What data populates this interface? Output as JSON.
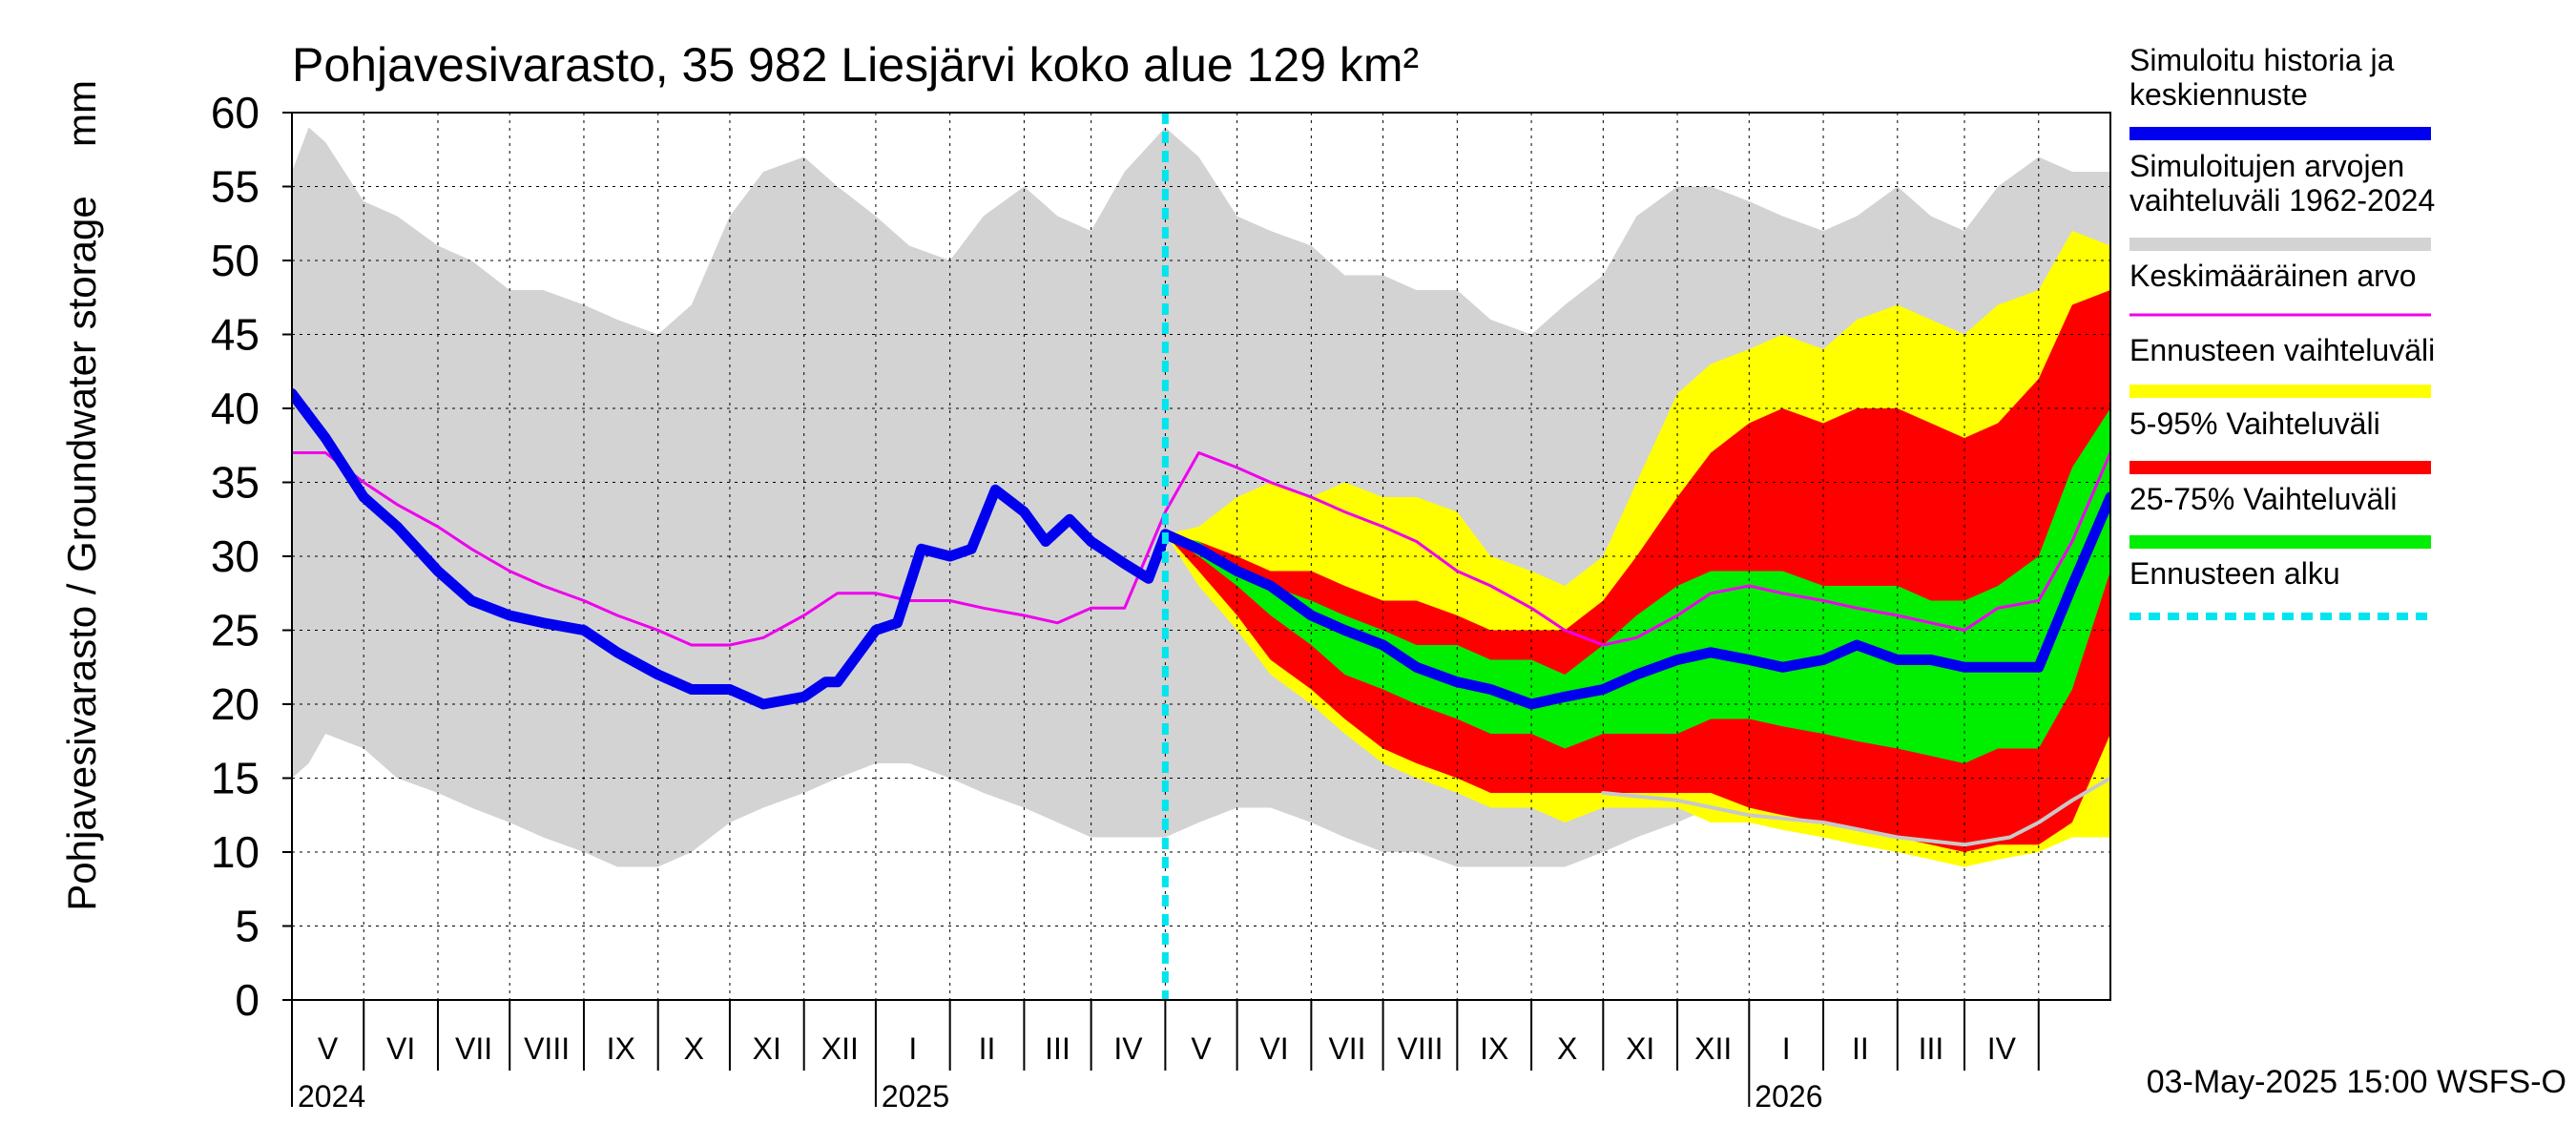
{
  "chart_data": {
    "type": "area",
    "title": "Pohjavesivarasto, 35 982 Liesjärvi koko alue 129 km²",
    "ylabel": "Pohjavesivarasto / Groundwater storage",
    "yunit": "mm",
    "ylim": [
      0,
      60
    ],
    "yticks": [
      0,
      5,
      10,
      15,
      20,
      25,
      30,
      35,
      40,
      45,
      50,
      55,
      60
    ],
    "xlim": [
      "2024-04-01",
      "2026-05-01"
    ],
    "x_axis": {
      "months": [
        {
          "label": "V",
          "start": "2024-04-01",
          "end": "2024-05-01"
        },
        {
          "label": "VI",
          "start": "2024-05-01",
          "end": "2024-06-01"
        },
        {
          "label": "VII",
          "start": "2024-06-01",
          "end": "2024-07-01"
        },
        {
          "label": "VIII",
          "start": "2024-07-01",
          "end": "2024-08-01"
        },
        {
          "label": "IX",
          "start": "2024-08-01",
          "end": "2024-09-01"
        },
        {
          "label": "X",
          "start": "2024-09-01",
          "end": "2024-10-01"
        },
        {
          "label": "XI",
          "start": "2024-10-01",
          "end": "2024-11-01"
        },
        {
          "label": "XII",
          "start": "2024-11-01",
          "end": "2024-12-01"
        },
        {
          "label": "I",
          "start": "2024-12-01",
          "end": "2025-01-01"
        },
        {
          "label": "II",
          "start": "2025-01-01",
          "end": "2025-02-01"
        },
        {
          "label": "III",
          "start": "2025-02-01",
          "end": "2025-03-01"
        },
        {
          "label": "IV",
          "start": "2025-03-01",
          "end": "2025-04-01"
        },
        {
          "label": "V",
          "start": "2025-04-01",
          "end": "2025-05-01"
        },
        {
          "label": "VI",
          "start": "2025-05-01",
          "end": "2025-06-01"
        },
        {
          "label": "VII",
          "start": "2025-06-01",
          "end": "2025-07-01"
        },
        {
          "label": "VIII",
          "start": "2025-07-01",
          "end": "2025-08-01"
        },
        {
          "label": "IX",
          "start": "2025-08-01",
          "end": "2025-09-01"
        },
        {
          "label": "X",
          "start": "2025-09-01",
          "end": "2025-10-01"
        },
        {
          "label": "XI",
          "start": "2025-10-01",
          "end": "2025-11-01"
        },
        {
          "label": "XII",
          "start": "2025-11-01",
          "end": "2025-12-01"
        },
        {
          "label": "I",
          "start": "2025-12-01",
          "end": "2026-01-01"
        },
        {
          "label": "II",
          "start": "2026-01-01",
          "end": "2026-02-01"
        },
        {
          "label": "III",
          "start": "2026-02-01",
          "end": "2026-03-01"
        },
        {
          "label": "IV",
          "start": "2026-03-01",
          "end": "2026-04-01"
        },
        {
          "label": "",
          "start": "2026-04-01",
          "end": "2026-05-01"
        }
      ],
      "years": [
        {
          "label": "2024",
          "at": "2024-04-01"
        },
        {
          "label": "2025",
          "at": "2024-12-01"
        },
        {
          "label": "2026",
          "at": "2025-12-01"
        }
      ]
    },
    "forecast_start": "2025-04-01",
    "footer": "03-May-2025 15:00 WSFS-O",
    "legend": [
      {
        "label": "Simuloitu historia ja keskiennuste",
        "color": "#0000ee",
        "style": "thick-line"
      },
      {
        "label": "Simuloitujen arvojen vaihteluväli 1962-2024",
        "color": "#d3d3d3",
        "style": "thick-line"
      },
      {
        "label": "Keskimääräinen arvo",
        "color": "#ee00ee",
        "style": "thin-line"
      },
      {
        "label": "Ennusteen vaihteluväli",
        "color": "#ffff00",
        "style": "thick-line"
      },
      {
        "label": "5-95% Vaihteluväli",
        "color": "#ff0000",
        "style": "thick-line"
      },
      {
        "label": "25-75% Vaihteluväli",
        "color": "#00ee00",
        "style": "thick-line"
      },
      {
        "label": "Ennusteen alku",
        "color": "#00e5ee",
        "style": "dashed-line"
      }
    ],
    "colors": {
      "history_range": "#d3d3d3",
      "forecast_range": "#ffff00",
      "p5_95": "#ff0000",
      "p25_75": "#00ee00",
      "mean": "#ee00ee",
      "simulated": "#0000ee",
      "forecast_start": "#00e5ee",
      "grid": "#000000",
      "min_line": "#c8c8c8"
    },
    "series": [
      {
        "name": "Simuloitujen arvojen vaihteluväli 1962-2024",
        "kind": "band",
        "x": [
          "2024-04-01",
          "2024-04-08",
          "2024-04-15",
          "2024-05-01",
          "2024-05-15",
          "2024-06-01",
          "2024-06-15",
          "2024-07-01",
          "2024-07-15",
          "2024-08-01",
          "2024-08-15",
          "2024-09-01",
          "2024-09-15",
          "2024-10-01",
          "2024-10-15",
          "2024-11-01",
          "2024-11-15",
          "2024-12-01",
          "2024-12-15",
          "2025-01-01",
          "2025-01-15",
          "2025-02-01",
          "2025-02-15",
          "2025-03-01",
          "2025-03-15",
          "2025-04-01",
          "2025-04-15",
          "2025-05-01",
          "2025-05-15",
          "2025-06-01",
          "2025-06-15",
          "2025-07-01",
          "2025-07-15",
          "2025-08-01",
          "2025-08-15",
          "2025-09-01",
          "2025-09-15",
          "2025-10-01",
          "2025-10-15",
          "2025-11-01",
          "2025-11-15",
          "2025-12-01",
          "2025-12-15",
          "2026-01-01",
          "2026-01-15",
          "2026-02-01",
          "2026-02-15",
          "2026-03-01",
          "2026-03-15",
          "2026-04-01",
          "2026-04-15",
          "2026-05-01"
        ],
        "upper": [
          56,
          59,
          58,
          54,
          53,
          51,
          50,
          48,
          48,
          47,
          46,
          45,
          47,
          53,
          56,
          57,
          55,
          53,
          51,
          50,
          53,
          55,
          53,
          52,
          56,
          59,
          57,
          53,
          52,
          51,
          49,
          49,
          48,
          48,
          46,
          45,
          47,
          49,
          53,
          55,
          55,
          54,
          53,
          52,
          53,
          55,
          53,
          52,
          55,
          57,
          56,
          56
        ],
        "lower": [
          15,
          16,
          18,
          17,
          15,
          14,
          13,
          12,
          11,
          10,
          9,
          9,
          10,
          12,
          13,
          14,
          15,
          16,
          16,
          15,
          14,
          13,
          12,
          11,
          11,
          11,
          12,
          13,
          13,
          12,
          11,
          10,
          10,
          9,
          9,
          9,
          9,
          10,
          11,
          12,
          13,
          14,
          14,
          13,
          12,
          12,
          12,
          11,
          11,
          11,
          12,
          12
        ]
      },
      {
        "name": "Ennusteen vaihteluväli",
        "kind": "band",
        "x": [
          "2025-04-01",
          "2025-04-15",
          "2025-05-01",
          "2025-05-15",
          "2025-06-01",
          "2025-06-15",
          "2025-07-01",
          "2025-07-15",
          "2025-08-01",
          "2025-08-15",
          "2025-09-01",
          "2025-09-15",
          "2025-10-01",
          "2025-10-15",
          "2025-11-01",
          "2025-11-15",
          "2025-12-01",
          "2025-12-15",
          "2026-01-01",
          "2026-01-15",
          "2026-02-01",
          "2026-02-15",
          "2026-03-01",
          "2026-03-15",
          "2026-04-01",
          "2026-04-15",
          "2026-05-01"
        ],
        "upper": [
          31.5,
          32,
          34,
          35,
          34,
          35,
          34,
          34,
          33,
          30,
          29,
          28,
          30,
          35,
          41,
          43,
          44,
          45,
          44,
          46,
          47,
          46,
          45,
          47,
          48,
          52,
          51
        ],
        "lower": [
          31.5,
          28,
          25,
          22,
          20,
          18,
          16,
          15,
          14,
          13,
          13,
          12,
          13,
          13,
          13,
          12,
          12,
          11.5,
          11,
          10.5,
          10,
          9.5,
          9,
          9.5,
          10,
          11,
          11
        ]
      },
      {
        "name": "5-95% Vaihteluväli",
        "kind": "band",
        "x": [
          "2025-04-01",
          "2025-04-15",
          "2025-05-01",
          "2025-05-15",
          "2025-06-01",
          "2025-06-15",
          "2025-07-01",
          "2025-07-15",
          "2025-08-01",
          "2025-08-15",
          "2025-09-01",
          "2025-09-15",
          "2025-10-01",
          "2025-10-15",
          "2025-11-01",
          "2025-11-15",
          "2025-12-01",
          "2025-12-15",
          "2026-01-01",
          "2026-01-15",
          "2026-02-01",
          "2026-02-15",
          "2026-03-01",
          "2026-03-15",
          "2026-04-01",
          "2026-04-15",
          "2026-05-01"
        ],
        "upper": [
          31.5,
          31,
          30,
          29,
          29,
          28,
          27,
          27,
          26,
          25,
          25,
          25,
          27,
          30,
          34,
          37,
          39,
          40,
          39,
          40,
          40,
          39,
          38,
          39,
          42,
          47,
          48
        ],
        "lower": [
          31.5,
          29,
          26,
          23,
          21,
          19,
          17,
          16,
          15,
          14,
          14,
          14,
          14,
          14,
          14,
          14,
          13,
          12.5,
          12,
          11.5,
          11,
          10.5,
          10,
          10.5,
          10.5,
          12,
          18
        ]
      },
      {
        "name": "25-75% Vaihteluväli",
        "kind": "band",
        "x": [
          "2025-04-01",
          "2025-04-15",
          "2025-05-01",
          "2025-05-15",
          "2025-06-01",
          "2025-06-15",
          "2025-07-01",
          "2025-07-15",
          "2025-08-01",
          "2025-08-15",
          "2025-09-01",
          "2025-09-15",
          "2025-10-01",
          "2025-10-15",
          "2025-11-01",
          "2025-11-15",
          "2025-12-01",
          "2025-12-15",
          "2026-01-01",
          "2026-01-15",
          "2026-02-01",
          "2026-02-15",
          "2026-03-01",
          "2026-03-15",
          "2026-04-01",
          "2026-04-15",
          "2026-05-01"
        ],
        "upper": [
          31.5,
          31,
          29,
          28,
          27,
          26,
          25,
          24,
          24,
          23,
          23,
          22,
          24,
          26,
          28,
          29,
          29,
          29,
          28,
          28,
          28,
          27,
          27,
          28,
          30,
          36,
          40
        ],
        "lower": [
          31.5,
          30,
          28,
          26,
          24,
          22,
          21,
          20,
          19,
          18,
          18,
          17,
          18,
          18,
          18,
          19,
          19,
          18.5,
          18,
          17.5,
          17,
          16.5,
          16,
          17,
          17,
          21,
          29
        ]
      },
      {
        "name": "Keskimääräinen arvo",
        "kind": "line",
        "x": [
          "2024-04-01",
          "2024-04-15",
          "2024-05-01",
          "2024-05-15",
          "2024-06-01",
          "2024-06-15",
          "2024-07-01",
          "2024-07-15",
          "2024-08-01",
          "2024-08-15",
          "2024-09-01",
          "2024-09-15",
          "2024-10-01",
          "2024-10-15",
          "2024-11-01",
          "2024-11-15",
          "2024-12-01",
          "2024-12-15",
          "2025-01-01",
          "2025-01-15",
          "2025-02-01",
          "2025-02-15",
          "2025-03-01",
          "2025-03-15",
          "2025-04-01",
          "2025-04-15",
          "2025-05-01",
          "2025-05-15",
          "2025-06-01",
          "2025-06-15",
          "2025-07-01",
          "2025-07-15",
          "2025-08-01",
          "2025-08-15",
          "2025-09-01",
          "2025-09-15",
          "2025-10-01",
          "2025-10-15",
          "2025-11-01",
          "2025-11-15",
          "2025-12-01",
          "2025-12-15",
          "2026-01-01",
          "2026-01-15",
          "2026-02-01",
          "2026-02-15",
          "2026-03-01",
          "2026-03-15",
          "2026-04-01",
          "2026-04-15",
          "2026-05-01"
        ],
        "values": [
          37,
          37,
          35,
          33.5,
          32,
          30.5,
          29,
          28,
          27,
          26,
          25,
          24,
          24,
          24.5,
          26,
          27.5,
          27.5,
          27,
          27,
          26.5,
          26,
          25.5,
          26.5,
          26.5,
          33,
          37,
          36,
          35,
          34,
          33,
          32,
          31,
          29,
          28,
          26.5,
          25,
          24,
          24.5,
          26,
          27.5,
          28,
          27.5,
          27,
          26.5,
          26,
          25.5,
          25,
          26.5,
          27,
          31,
          37
        ]
      },
      {
        "name": "Simuloitu historia ja keskiennuste",
        "kind": "line",
        "x": [
          "2024-04-01",
          "2024-04-15",
          "2024-05-01",
          "2024-05-15",
          "2024-06-01",
          "2024-06-15",
          "2024-07-01",
          "2024-07-15",
          "2024-08-01",
          "2024-08-15",
          "2024-09-01",
          "2024-09-15",
          "2024-10-01",
          "2024-10-15",
          "2024-11-01",
          "2024-11-10",
          "2024-11-15",
          "2024-12-01",
          "2024-12-10",
          "2024-12-20",
          "2025-01-01",
          "2025-01-10",
          "2025-01-20",
          "2025-02-01",
          "2025-02-10",
          "2025-02-20",
          "2025-03-01",
          "2025-03-15",
          "2025-03-25",
          "2025-04-01",
          "2025-04-15",
          "2025-05-01",
          "2025-05-15",
          "2025-06-01",
          "2025-06-15",
          "2025-07-01",
          "2025-07-15",
          "2025-08-01",
          "2025-08-15",
          "2025-09-01",
          "2025-09-15",
          "2025-10-01",
          "2025-10-15",
          "2025-11-01",
          "2025-11-15",
          "2025-12-01",
          "2025-12-15",
          "2026-01-01",
          "2026-01-15",
          "2026-02-01",
          "2026-02-15",
          "2026-03-01",
          "2026-03-15",
          "2026-04-01",
          "2026-04-15",
          "2026-05-01"
        ],
        "values": [
          41,
          38,
          34,
          32,
          29,
          27,
          26,
          25.5,
          25,
          23.5,
          22,
          21,
          21,
          20,
          20.5,
          21.5,
          21.5,
          25,
          25.5,
          30.5,
          30,
          30.5,
          34.5,
          33,
          31,
          32.5,
          31,
          29.5,
          28.5,
          31.5,
          30.5,
          29,
          28,
          26,
          25,
          24,
          22.5,
          21.5,
          21,
          20,
          20.5,
          21,
          22,
          23,
          23.5,
          23,
          22.5,
          23,
          24,
          23,
          23,
          22.5,
          22.5,
          22.5,
          28,
          34
        ]
      },
      {
        "name": "min-line",
        "kind": "line",
        "x": [
          "2025-10-01",
          "2025-11-01",
          "2025-12-01",
          "2026-01-01",
          "2026-02-01",
          "2026-03-01",
          "2026-03-20",
          "2026-04-01",
          "2026-04-15",
          "2026-05-01"
        ],
        "values": [
          14,
          13.5,
          12.5,
          12,
          11,
          10.5,
          11,
          12,
          13.5,
          15
        ]
      }
    ]
  }
}
